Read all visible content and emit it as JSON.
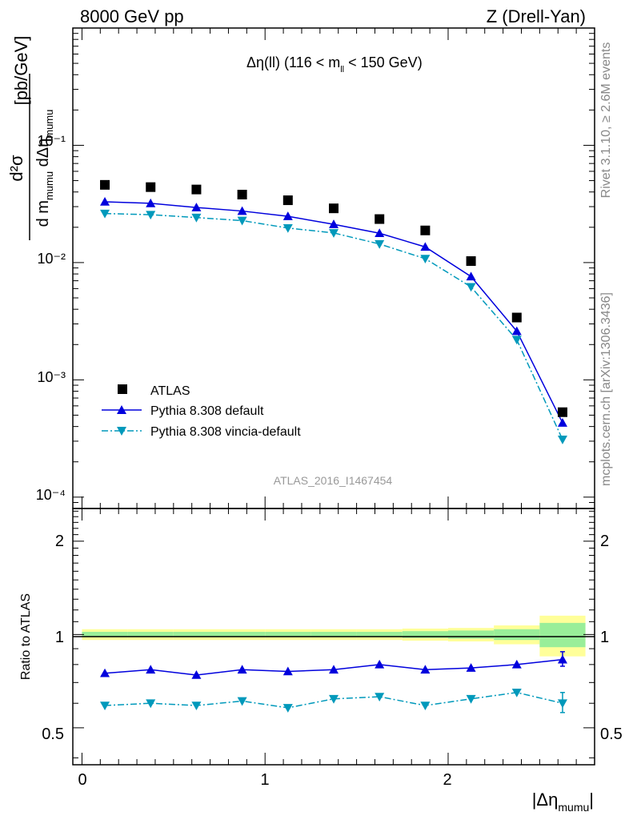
{
  "header": {
    "left": "8000 GeV pp",
    "right": "Z (Drell-Yan)"
  },
  "side_labels": {
    "rivet": "Rivet 3.1.10, ≥ 2.6M events",
    "mcplots": "mcplots.cern.ch [arXiv:1306.3436]"
  },
  "main": {
    "title_pre": "Δη(ll) (116 < m",
    "title_sub": "ll",
    "title_post": " < 150 GeV)",
    "ylabel_num": "d²σ",
    "ylabel_den_a": "d m",
    "ylabel_den_sub1": "mumu",
    "ylabel_den_b": " dΔη",
    "ylabel_den_sub2": "mumu",
    "ylabel_unit": "[pb/GeV]",
    "watermark": "ATLAS_2016_I1467454",
    "ytick_labels": [
      "10⁻⁴",
      "10⁻³",
      "10⁻²",
      "10⁻¹"
    ]
  },
  "ratio": {
    "ylabel": "Ratio to ATLAS",
    "ytick_labels": [
      "0.5",
      "1",
      "2"
    ],
    "xtick_labels": [
      "0",
      "1",
      "2"
    ],
    "xlabel": "|Δη",
    "xlabel_sub": "mumu",
    "xlabel_end": "|"
  },
  "legend": {
    "atlas": "ATLAS",
    "pythia": "Pythia 8.308 default",
    "vincia": "Pythia 8.308 vincia-default"
  },
  "colors": {
    "atlas": "#000000",
    "pythia": "#0000dd",
    "vincia": "#0099bb",
    "band_inner": "#99ee99",
    "band_outer": "#ffff99"
  },
  "chart_data": {
    "type": "scatter",
    "x": [
      0.125,
      0.375,
      0.625,
      0.875,
      1.125,
      1.375,
      1.625,
      1.875,
      2.125,
      2.375,
      2.625
    ],
    "x_bin_edges": [
      0,
      0.25,
      0.5,
      0.75,
      1.0,
      1.25,
      1.5,
      1.75,
      2.0,
      2.25,
      2.5,
      2.75
    ],
    "xlim": [
      -0.05,
      2.8
    ],
    "ylim": [
      8e-05,
      1.0
    ],
    "yscale": "log",
    "series": [
      {
        "name": "ATLAS",
        "values": [
          0.046,
          0.044,
          0.042,
          0.038,
          0.034,
          0.029,
          0.0235,
          0.0188,
          0.0103,
          0.0034,
          0.00053
        ]
      },
      {
        "name": "Pythia 8.308 default",
        "values": [
          0.033,
          0.032,
          0.0295,
          0.0275,
          0.0248,
          0.0212,
          0.0178,
          0.0136,
          0.0076,
          0.0026,
          0.00043
        ]
      },
      {
        "name": "Pythia 8.308 vincia-default",
        "values": [
          0.0262,
          0.0256,
          0.0242,
          0.0228,
          0.0197,
          0.0179,
          0.0144,
          0.0108,
          0.0062,
          0.0022,
          0.00031
        ]
      }
    ],
    "ratio": {
      "ylim": [
        0.38,
        2.55
      ],
      "yscale": "log",
      "series": [
        {
          "name": "Pythia 8.308 default",
          "values": [
            0.75,
            0.77,
            0.74,
            0.77,
            0.76,
            0.77,
            0.8,
            0.77,
            0.78,
            0.8,
            0.83
          ]
        },
        {
          "name": "Pythia 8.308 vincia-default",
          "values": [
            0.59,
            0.6,
            0.59,
            0.61,
            0.58,
            0.62,
            0.63,
            0.59,
            0.62,
            0.65,
            0.6
          ]
        }
      ],
      "band_inner": [
        [
          0.98,
          1.02
        ],
        [
          0.98,
          1.02
        ],
        [
          0.98,
          1.02
        ],
        [
          0.98,
          1.02
        ],
        [
          0.98,
          1.02
        ],
        [
          0.98,
          1.02
        ],
        [
          0.98,
          1.02
        ],
        [
          0.975,
          1.025
        ],
        [
          0.97,
          1.03
        ],
        [
          0.96,
          1.04
        ],
        [
          0.91,
          1.09
        ]
      ],
      "band_outer": [
        [
          0.96,
          1.04
        ],
        [
          0.96,
          1.04
        ],
        [
          0.96,
          1.04
        ],
        [
          0.96,
          1.04
        ],
        [
          0.96,
          1.04
        ],
        [
          0.96,
          1.04
        ],
        [
          0.96,
          1.04
        ],
        [
          0.955,
          1.045
        ],
        [
          0.95,
          1.05
        ],
        [
          0.93,
          1.07
        ],
        [
          0.85,
          1.15
        ]
      ],
      "error_bars": [
        {
          "series": 0,
          "index": 10,
          "low": 0.79,
          "high": 0.88
        },
        {
          "series": 1,
          "index": 10,
          "low": 0.56,
          "high": 0.65
        }
      ]
    }
  }
}
